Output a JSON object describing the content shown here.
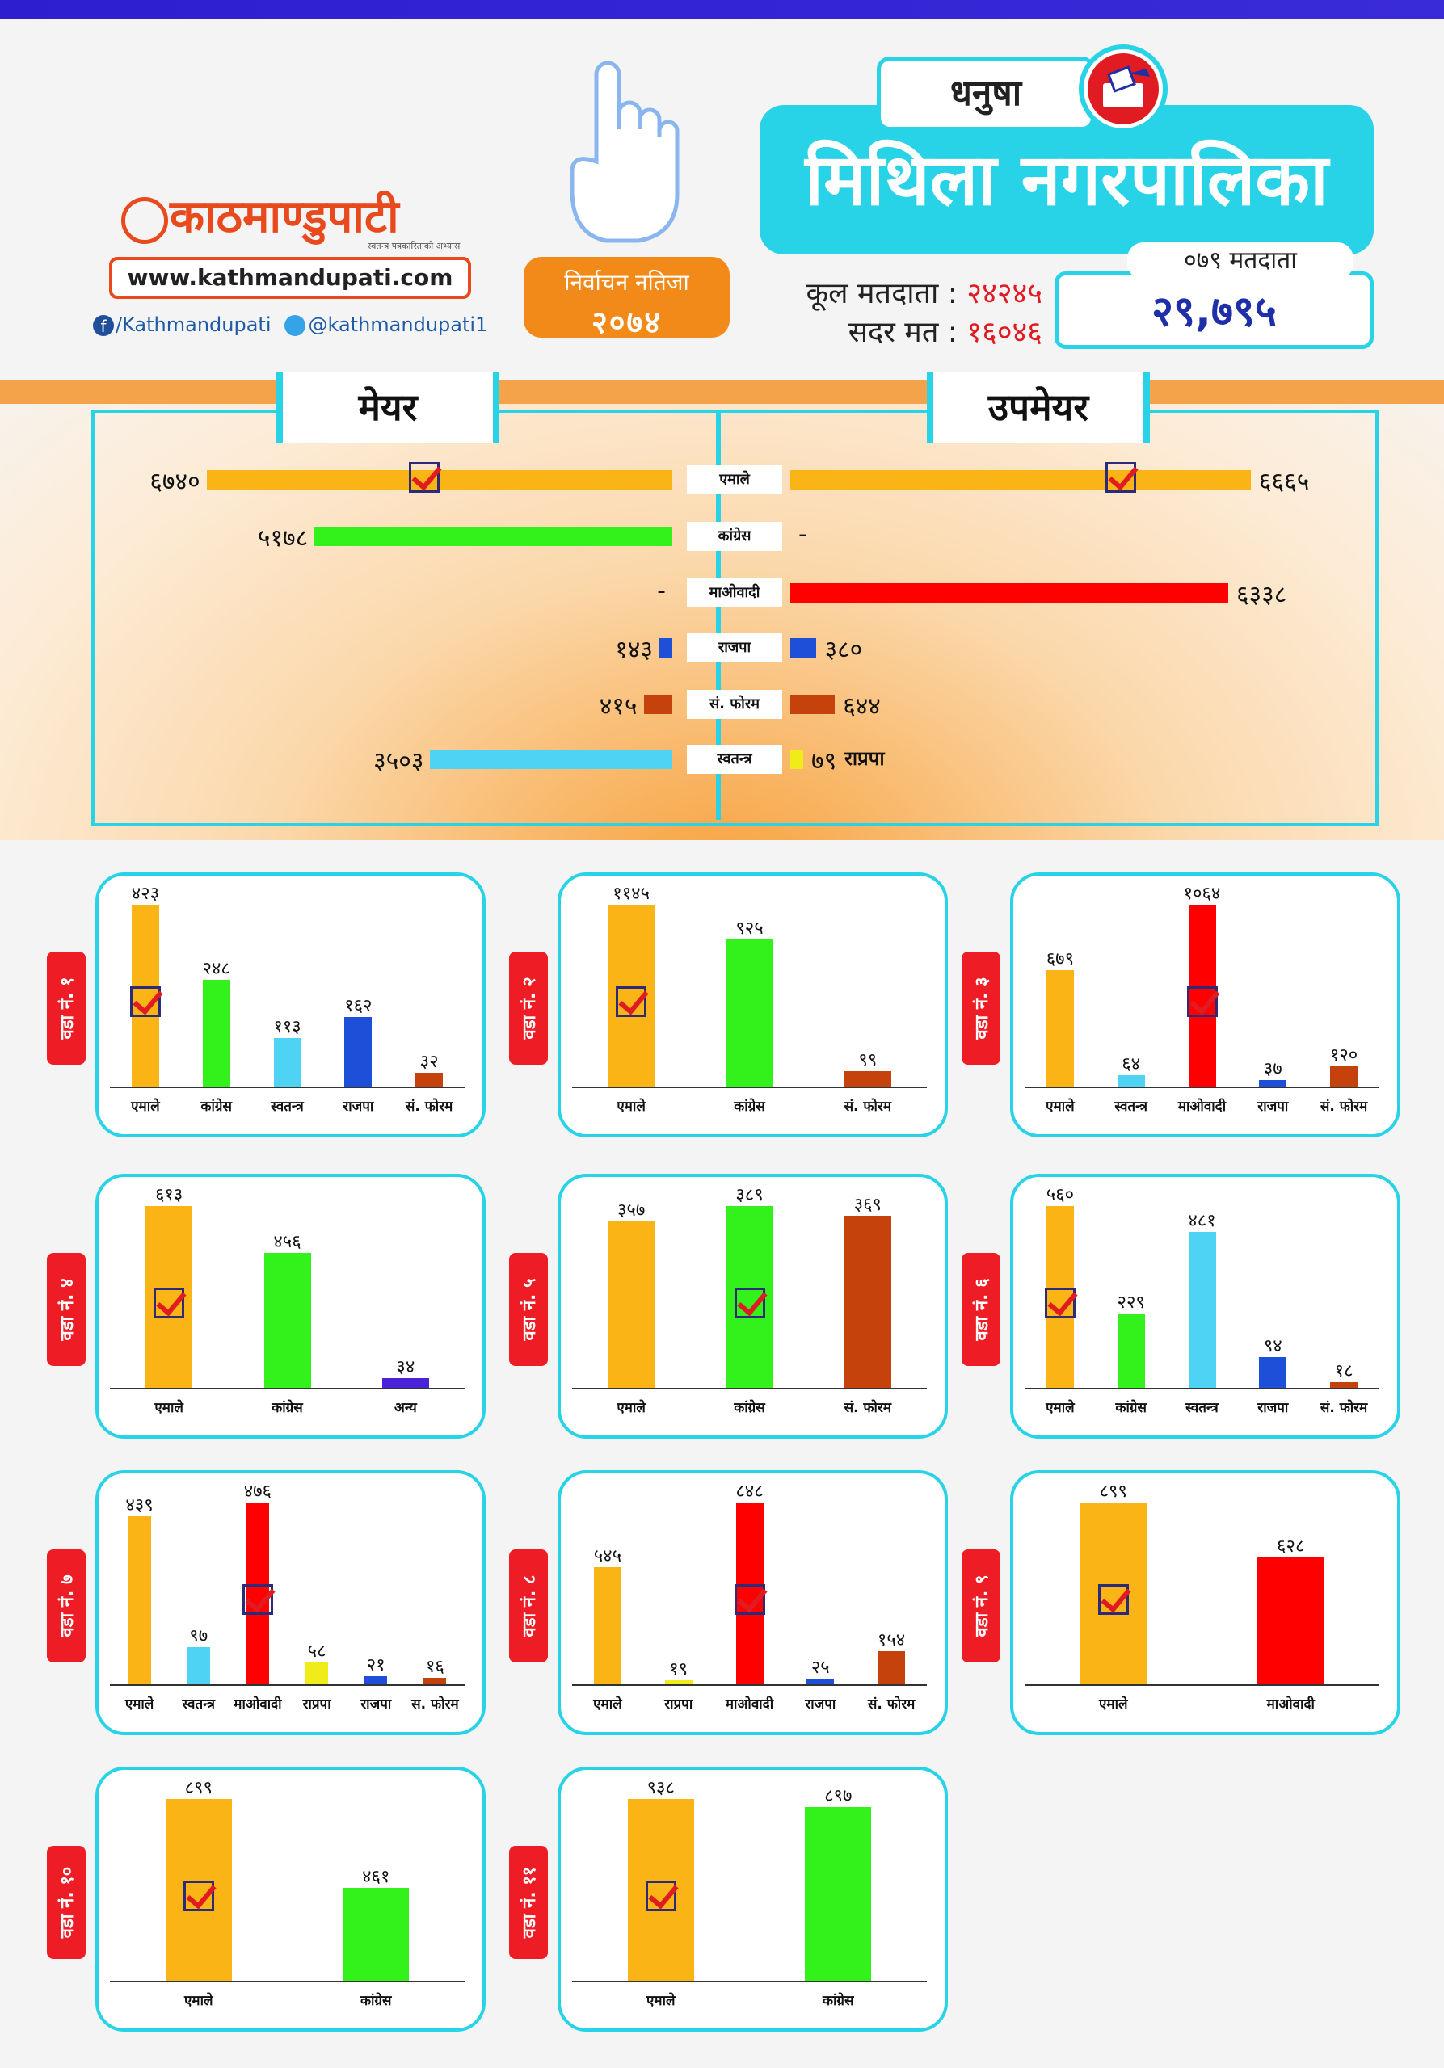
{
  "header": {
    "logo_text": "काठमाण्डुपाटी",
    "tagline": "स्वतन्त्र पत्रकारिताको अभ्यास",
    "website": "www.kathmandupati.com",
    "facebook": "/Kathmandupati",
    "twitter": "@kathmandupati1",
    "election_badge_line1": "निर्वाचन नतिजा",
    "election_badge_line2": "२०७४",
    "district": "धनुषा",
    "municipality": "मिथिला नगरपालिका",
    "total_voters_label": "कूल मतदाता :",
    "total_voters": "२४२४५",
    "valid_votes_label": "सदर मत :",
    "valid_votes": "१६०४६",
    "voters_079_label": "०७९ मतदाता",
    "voters_079": "२९,७९५"
  },
  "colors": {
    "accent_cyan": "#28d3e7",
    "emale": "#fbb416",
    "congress": "#33f21b",
    "maoist": "#ff0000",
    "rajapa": "#1e4fd8",
    "forum": "#c6420c",
    "independent": "#4fd3f5",
    "rprapa": "#f0ec1a",
    "other": "#4a22d8"
  },
  "chart_data": [
    {
      "type": "bar",
      "orientation": "horizontal",
      "title": "मेयर",
      "categories": [
        "एमाले",
        "कांग्रेस",
        "माओवादी",
        "राजपा",
        "सं. फोरम",
        "स्वतन्त्र"
      ],
      "values": [
        6740,
        5178,
        null,
        143,
        415,
        3503
      ],
      "labels": [
        "६७४०",
        "५१७८",
        "-",
        "१४३",
        "४१५",
        "३५०३"
      ],
      "colors": [
        "#fbb416",
        "#33f21b",
        "#ff0000",
        "#1e4fd8",
        "#c6420c",
        "#4fd3f5"
      ],
      "winner_index": 0,
      "xlim": [
        0,
        6900
      ]
    },
    {
      "type": "bar",
      "orientation": "horizontal",
      "title": "उपमेयर",
      "categories": [
        "एमाले",
        "कांग्रेस",
        "माओवादी",
        "राजपा",
        "सं. फोरम",
        "राप्रपा"
      ],
      "values": [
        6665,
        null,
        6338,
        380,
        644,
        79
      ],
      "labels": [
        "६६६५",
        "-",
        "६३३८",
        "३८०",
        "६४४",
        "७९"
      ],
      "colors": [
        "#fbb416",
        "#33f21b",
        "#ff0000",
        "#1e4fd8",
        "#c6420c",
        "#f0ec1a"
      ],
      "extra_label": "राप्रपा",
      "winner_index": 0,
      "xlim": [
        0,
        6900
      ]
    },
    {
      "type": "bar",
      "ward": "वडा नं. १",
      "categories": [
        "एमाले",
        "कांग्रेस",
        "स्वतन्त्र",
        "राजपा",
        "सं. फोरम"
      ],
      "values": [
        423,
        248,
        113,
        162,
        32
      ],
      "labels": [
        "४२३",
        "२४८",
        "११३",
        "१६२",
        "३२"
      ],
      "colors": [
        "#fbb416",
        "#33f21b",
        "#4fd3f5",
        "#1e4fd8",
        "#c6420c"
      ],
      "winner_index": 0
    },
    {
      "type": "bar",
      "ward": "वडा नं. २",
      "categories": [
        "एमाले",
        "कांग्रेस",
        "सं. फोरम"
      ],
      "values": [
        1145,
        925,
        99
      ],
      "labels": [
        "११४५",
        "९२५",
        "९९"
      ],
      "colors": [
        "#fbb416",
        "#33f21b",
        "#c6420c"
      ],
      "winner_index": 0
    },
    {
      "type": "bar",
      "ward": "वडा नं. ३",
      "categories": [
        "एमाले",
        "स्वतन्त्र",
        "माओवादी",
        "राजपा",
        "सं. फोरम"
      ],
      "values": [
        679,
        64,
        1064,
        37,
        120
      ],
      "labels": [
        "६७९",
        "६४",
        "१०६४",
        "३७",
        "१२०"
      ],
      "colors": [
        "#fbb416",
        "#4fd3f5",
        "#ff0000",
        "#1e4fd8",
        "#c6420c"
      ],
      "winner_index": 2
    },
    {
      "type": "bar",
      "ward": "वडा नं. ४",
      "categories": [
        "एमाले",
        "कांग्रेस",
        "अन्य"
      ],
      "values": [
        613,
        456,
        34
      ],
      "labels": [
        "६१३",
        "४५६",
        "३४"
      ],
      "colors": [
        "#fbb416",
        "#33f21b",
        "#4a22d8"
      ],
      "winner_index": 0
    },
    {
      "type": "bar",
      "ward": "वडा नं. ५",
      "categories": [
        "एमाले",
        "कांग्रेस",
        "सं. फोरम"
      ],
      "values": [
        357,
        389,
        369
      ],
      "labels": [
        "३५७",
        "३८९",
        "३६९"
      ],
      "colors": [
        "#fbb416",
        "#33f21b",
        "#c6420c"
      ],
      "winner_index": 1
    },
    {
      "type": "bar",
      "ward": "वडा नं. ६",
      "categories": [
        "एमाले",
        "कांग्रेस",
        "स्वतन्त्र",
        "राजपा",
        "सं. फोरम"
      ],
      "values": [
        560,
        229,
        481,
        94,
        18
      ],
      "labels": [
        "५६०",
        "२२९",
        "४८१",
        "९४",
        "१८"
      ],
      "colors": [
        "#fbb416",
        "#33f21b",
        "#4fd3f5",
        "#1e4fd8",
        "#c6420c"
      ],
      "winner_index": 0
    },
    {
      "type": "bar",
      "ward": "वडा नं. ७",
      "categories": [
        "एमाले",
        "स्वतन्त्र",
        "माओवादी",
        "राप्रपा",
        "राजपा",
        "स. फोरम"
      ],
      "values": [
        439,
        97,
        476,
        58,
        21,
        16
      ],
      "labels": [
        "४३९",
        "९७",
        "४७६",
        "५८",
        "२१",
        "१६"
      ],
      "colors": [
        "#fbb416",
        "#4fd3f5",
        "#ff0000",
        "#f0ec1a",
        "#1e4fd8",
        "#c6420c"
      ],
      "winner_index": 2
    },
    {
      "type": "bar",
      "ward": "वडा नं. ८",
      "categories": [
        "एमाले",
        "राप्रपा",
        "माओवादी",
        "राजपा",
        "सं. फोरम"
      ],
      "values": [
        545,
        19,
        848,
        25,
        154
      ],
      "labels": [
        "५४५",
        "१९",
        "८४८",
        "२५",
        "१५४"
      ],
      "colors": [
        "#fbb416",
        "#f0ec1a",
        "#ff0000",
        "#1e4fd8",
        "#c6420c"
      ],
      "winner_index": 2
    },
    {
      "type": "bar",
      "ward": "वडा नं. ९",
      "categories": [
        "एमाले",
        "माओवादी"
      ],
      "values": [
        899,
        628
      ],
      "labels": [
        "८९९",
        "६२८"
      ],
      "colors": [
        "#fbb416",
        "#ff0000"
      ],
      "winner_index": 0
    },
    {
      "type": "bar",
      "ward": "वडा नं. १०",
      "categories": [
        "एमाले",
        "कांग्रेस"
      ],
      "values": [
        899,
        461
      ],
      "labels": [
        "८९९",
        "४६१"
      ],
      "colors": [
        "#fbb416",
        "#33f21b"
      ],
      "winner_index": 0
    },
    {
      "type": "bar",
      "ward": "वडा नं. ११",
      "categories": [
        "एमाले",
        "कांग्रेस"
      ],
      "values": [
        938,
        897
      ],
      "labels": [
        "९३८",
        "८९७"
      ],
      "colors": [
        "#fbb416",
        "#33f21b"
      ],
      "winner_index": 0
    }
  ]
}
